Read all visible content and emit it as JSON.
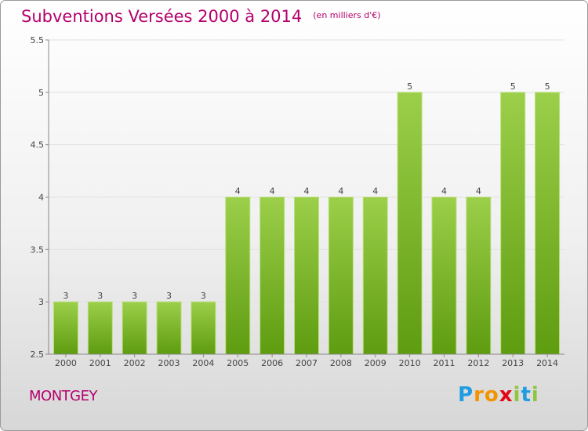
{
  "title": "Subventions Versées 2000 à 2014",
  "unit_note": "(en milliers d'€)",
  "commune": "MONTGEY",
  "logo": {
    "text": "Proxiti",
    "letters": [
      "P",
      "r",
      "o",
      "x",
      "i",
      "t",
      "i"
    ],
    "colors": [
      "#1f9de0",
      "#f29400",
      "#f29400",
      "#e30613",
      "#8dc63f",
      "#1f9de0",
      "#8dc63f"
    ]
  },
  "colors": {
    "title": "#b5006c",
    "bar_top": "#9ccf4a",
    "bar_bottom": "#5e9c10",
    "axis": "#888888"
  },
  "chart_data": {
    "type": "bar",
    "categories": [
      "2000",
      "2001",
      "2002",
      "2003",
      "2004",
      "2005",
      "2006",
      "2007",
      "2008",
      "2009",
      "2010",
      "2011",
      "2012",
      "2013",
      "2014"
    ],
    "values": [
      3,
      3,
      3,
      3,
      3,
      4,
      4,
      4,
      4,
      4,
      5,
      4,
      4,
      5,
      5
    ],
    "ylim": [
      2.5,
      5.5
    ],
    "yticks": [
      2.5,
      3,
      3.5,
      4,
      4.5,
      5,
      5.5
    ],
    "ytick_labels": [
      "2.5",
      "3",
      "3.5",
      "4",
      "4.5",
      "5",
      "5.5"
    ],
    "data_labels": [
      "3",
      "3",
      "3",
      "3",
      "3",
      "4",
      "4",
      "4",
      "4",
      "4",
      "5",
      "4",
      "4",
      "5",
      "5"
    ],
    "grid": "horizontal"
  }
}
